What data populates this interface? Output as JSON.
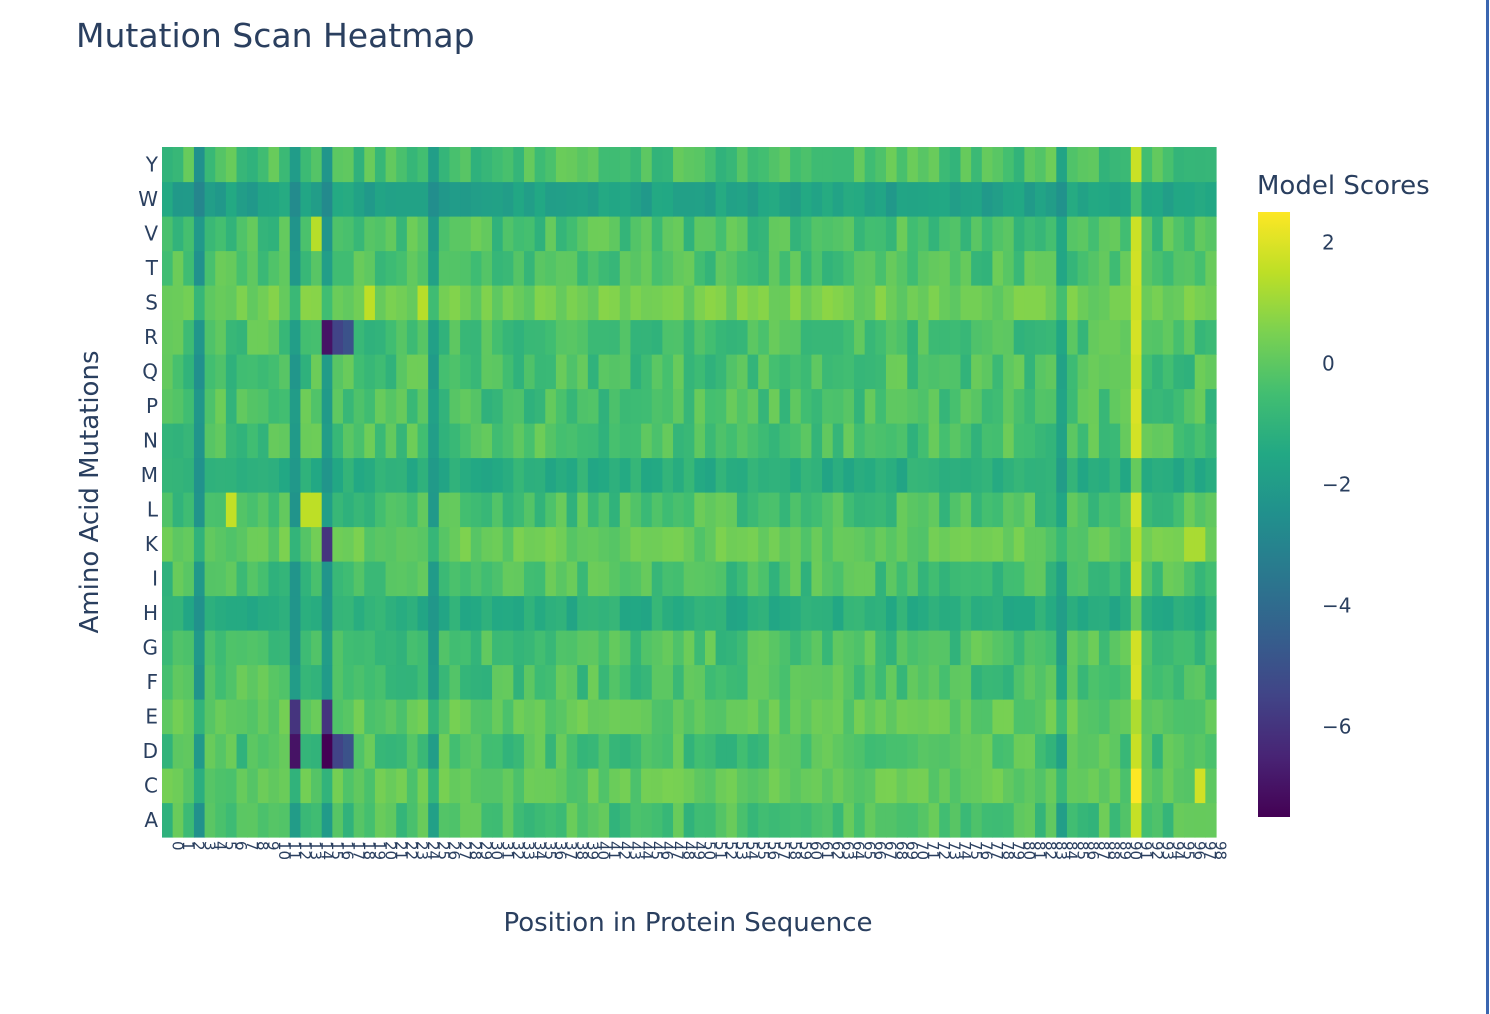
{
  "chart_data": {
    "type": "heatmap",
    "title": "Mutation Scan Heatmap",
    "xlabel": "Position in Protein Sequence",
    "ylabel": "Amino Acid Mutations",
    "colorbar": {
      "title": "Model Scores",
      "range": [
        -7.5,
        2.5
      ],
      "ticks": [
        2,
        0,
        -2,
        -4,
        -6
      ],
      "tick_labels": [
        "2",
        "0",
        "−2",
        "−4",
        "−6"
      ],
      "colorscale": "viridis"
    },
    "y_categories": [
      "A",
      "C",
      "D",
      "E",
      "F",
      "G",
      "H",
      "I",
      "K",
      "L",
      "M",
      "N",
      "P",
      "Q",
      "R",
      "S",
      "T",
      "V",
      "W",
      "Y"
    ],
    "x_range": [
      0,
      98
    ],
    "x_count": 99,
    "x_tick_labels": [
      "0",
      "1",
      "2",
      "3",
      "4",
      "5",
      "6",
      "7",
      "8",
      "9",
      "10",
      "11",
      "12",
      "13",
      "14",
      "15",
      "16",
      "17",
      "18",
      "19",
      "20",
      "21",
      "22",
      "23",
      "24",
      "25",
      "26",
      "27",
      "28",
      "29",
      "30",
      "31",
      "32",
      "33",
      "34",
      "35",
      "36",
      "37",
      "38",
      "39",
      "40",
      "41",
      "42",
      "43",
      "44",
      "45",
      "46",
      "47",
      "48",
      "49",
      "50",
      "51",
      "52",
      "53",
      "54",
      "55",
      "56",
      "57",
      "58",
      "59",
      "60",
      "61",
      "62",
      "63",
      "64",
      "65",
      "66",
      "67",
      "68",
      "69",
      "70",
      "71",
      "72",
      "73",
      "74",
      "75",
      "76",
      "77",
      "78",
      "79",
      "80",
      "81",
      "82",
      "83",
      "84",
      "85",
      "86",
      "87",
      "88",
      "89",
      "90",
      "91",
      "92",
      "93",
      "94",
      "95",
      "96",
      "97",
      "98"
    ],
    "features": [
      {
        "type": "col",
        "x": 3,
        "v": -2.2
      },
      {
        "type": "col",
        "x": 12,
        "v": -2.0
      },
      {
        "type": "col",
        "x": 15,
        "v": -2.0
      },
      {
        "type": "col",
        "x": 25,
        "v": -1.8
      },
      {
        "type": "col",
        "x": 84,
        "v": -1.6
      },
      {
        "type": "col",
        "x": 91,
        "v": 1.9
      },
      {
        "type": "row",
        "y": "W",
        "v": -1.5
      },
      {
        "type": "row",
        "y": "H",
        "v": -1.0
      },
      {
        "type": "row",
        "y": "M",
        "v": -1.0
      },
      {
        "type": "row",
        "y": "S",
        "v": 0.6
      },
      {
        "type": "row",
        "y": "K",
        "v": 0.4
      },
      {
        "type": "row",
        "y": "E",
        "v": 0.3
      },
      {
        "type": "row",
        "y": "C",
        "v": 0.3
      },
      {
        "type": "cell",
        "x": 15,
        "y": "D",
        "v": -7.5
      },
      {
        "type": "cell",
        "x": 15,
        "y": "R",
        "v": -7.0
      },
      {
        "type": "cell",
        "x": 15,
        "y": "K",
        "v": -6.0
      },
      {
        "type": "cell",
        "x": 15,
        "y": "E",
        "v": -6.0
      },
      {
        "type": "cell",
        "x": 12,
        "y": "D",
        "v": -7.0
      },
      {
        "type": "cell",
        "x": 12,
        "y": "E",
        "v": -6.0
      },
      {
        "type": "cell",
        "x": 16,
        "y": "D",
        "v": -5.5
      },
      {
        "type": "cell",
        "x": 17,
        "y": "D",
        "v": -5.0
      },
      {
        "type": "cell",
        "x": 16,
        "y": "R",
        "v": -5.5
      },
      {
        "type": "cell",
        "x": 17,
        "y": "R",
        "v": -5.0
      },
      {
        "type": "cell",
        "x": 91,
        "y": "C",
        "v": 2.5
      },
      {
        "type": "cell",
        "x": 6,
        "y": "L",
        "v": 1.6
      },
      {
        "type": "cell",
        "x": 13,
        "y": "L",
        "v": 1.5
      },
      {
        "type": "cell",
        "x": 14,
        "y": "L",
        "v": 1.5
      },
      {
        "type": "cell",
        "x": 14,
        "y": "V",
        "v": 1.4
      },
      {
        "type": "cell",
        "x": 19,
        "y": "S",
        "v": 1.5
      },
      {
        "type": "cell",
        "x": 24,
        "y": "S",
        "v": 1.4
      },
      {
        "type": "cell",
        "x": 97,
        "y": "C",
        "v": 1.8
      },
      {
        "type": "cell",
        "x": 96,
        "y": "K",
        "v": 1.2
      },
      {
        "type": "cell",
        "x": 97,
        "y": "K",
        "v": 1.2
      }
    ]
  }
}
